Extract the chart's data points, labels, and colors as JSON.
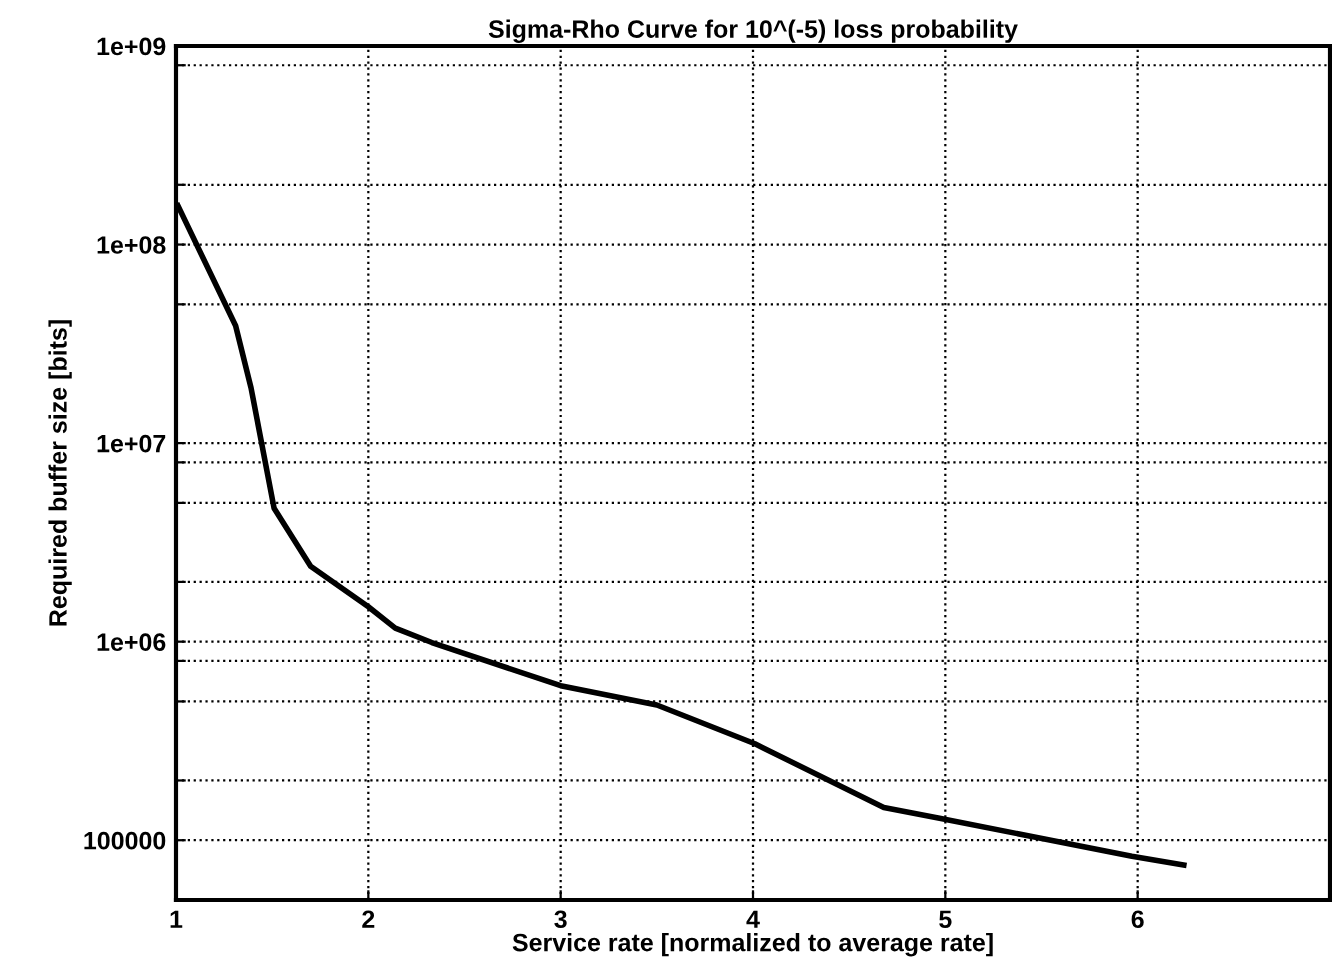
{
  "chart_data": {
    "type": "line",
    "title": "Sigma-Rho Curve for 10^(-5) loss probability",
    "xlabel": "Service rate [normalized to average rate]",
    "ylabel": "Required buffer size [bits]",
    "x": [
      1.01,
      1.31,
      1.39,
      1.51,
      1.7,
      2.0,
      2.14,
      2.33,
      3.0,
      3.5,
      4.01,
      4.68,
      4.97,
      5.97,
      6.24
    ],
    "series": [
      {
        "color": "#000000",
        "values": [
          157000000,
          39000000,
          19000000,
          4700000,
          2400000,
          1500000,
          1170000,
          990000,
          600000,
          480000,
          306000,
          146000,
          129000,
          83000,
          75000
        ]
      }
    ],
    "log": "y",
    "xlim": [
      1,
      7
    ],
    "ylim": [
      50000,
      1000000000
    ],
    "xticks": [
      1,
      2,
      3,
      4,
      5,
      6
    ],
    "yticks": [
      {
        "value": 100000,
        "label": "100000"
      },
      {
        "value": 200000,
        "label": null
      },
      {
        "value": 500000,
        "label": null
      },
      {
        "value": 800000,
        "label": null
      },
      {
        "value": 1000000,
        "label": "1e+06"
      },
      {
        "value": 2000000,
        "label": null
      },
      {
        "value": 5000000,
        "label": null
      },
      {
        "value": 8000000,
        "label": null
      },
      {
        "value": 10000000,
        "label": "1e+07"
      },
      {
        "value": 50000000,
        "label": null
      },
      {
        "value": 100000000,
        "label": "1e+08"
      },
      {
        "value": 200000000,
        "label": null
      },
      {
        "value": 800000000,
        "label": null
      },
      {
        "value": 1000000000,
        "label": "1e+09"
      }
    ],
    "grid": true,
    "line_style": "solid",
    "marker": "none"
  }
}
